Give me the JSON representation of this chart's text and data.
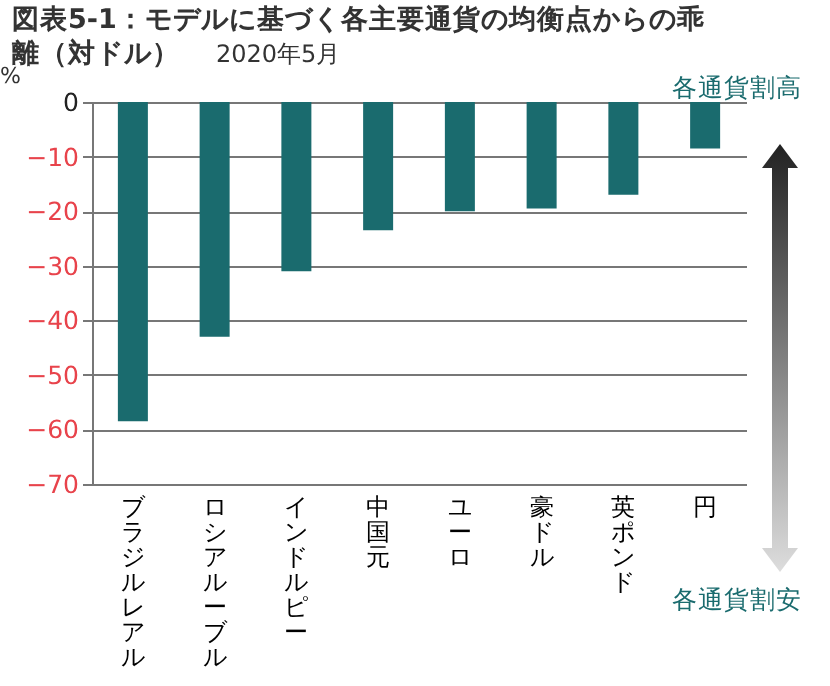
{
  "chart_data": {
    "type": "bar",
    "title": "図表5-1：モデルに基づく各主要通貨の均衡点からの乖離（対ドル）",
    "subtitle": "2020年5月",
    "ylabel": "%",
    "categories": [
      "ブラジルレアル",
      "ロシアルーブル",
      "インドルピー",
      "中国元",
      "ユーロ",
      "豪ドル",
      "英ポンド",
      "円"
    ],
    "values": [
      -58.5,
      -43,
      -31,
      -23.5,
      -20,
      -19.5,
      -17,
      -8.5
    ],
    "color": "#1a6b6e",
    "ylim": [
      -70,
      0
    ],
    "yticks": [
      -70,
      -60,
      -50,
      -40,
      -30,
      -20,
      -10,
      0
    ],
    "grid": "y",
    "annotations": [
      "各通貨割高",
      "各通貨割安"
    ]
  }
}
